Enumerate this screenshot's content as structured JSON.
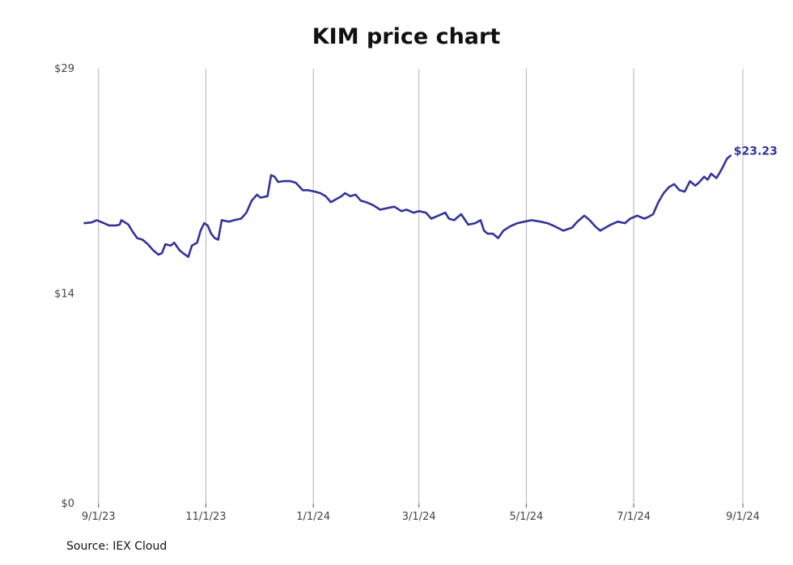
{
  "chart_data": {
    "type": "line",
    "title": "KIM price chart",
    "xlabel": "",
    "ylabel": "",
    "ylim": [
      0,
      29
    ],
    "y_ticks": [
      {
        "value": 0,
        "label": "$0"
      },
      {
        "value": 14,
        "label": "$14"
      },
      {
        "value": 29,
        "label": "$29"
      }
    ],
    "x_range": [
      "2023-08-22",
      "2024-09-18"
    ],
    "x_ticks": [
      {
        "date": "2023-09-01",
        "label": "9/1/23"
      },
      {
        "date": "2023-11-01",
        "label": "11/1/23"
      },
      {
        "date": "2024-01-01",
        "label": "1/1/24"
      },
      {
        "date": "2024-03-01",
        "label": "3/1/24"
      },
      {
        "date": "2024-05-01",
        "label": "5/1/24"
      },
      {
        "date": "2024-07-01",
        "label": "7/1/24"
      },
      {
        "date": "2024-09-01",
        "label": "9/1/24"
      }
    ],
    "grid": "vertical",
    "legend": "none",
    "color": "#33339a",
    "last_label": "$23.23",
    "series": [
      {
        "points": [
          [
            "2023-08-24",
            18.7
          ],
          [
            "2023-08-28",
            18.75
          ],
          [
            "2023-08-31",
            18.9
          ],
          [
            "2023-09-04",
            18.7
          ],
          [
            "2023-09-07",
            18.55
          ],
          [
            "2023-09-11",
            18.55
          ],
          [
            "2023-09-13",
            18.6
          ],
          [
            "2023-09-14",
            18.9
          ],
          [
            "2023-09-18",
            18.6
          ],
          [
            "2023-09-20",
            18.2
          ],
          [
            "2023-09-23",
            17.7
          ],
          [
            "2023-09-26",
            17.6
          ],
          [
            "2023-09-29",
            17.3
          ],
          [
            "2023-10-02",
            16.9
          ],
          [
            "2023-10-05",
            16.6
          ],
          [
            "2023-10-07",
            16.7
          ],
          [
            "2023-10-09",
            17.3
          ],
          [
            "2023-10-12",
            17.2
          ],
          [
            "2023-10-14",
            17.4
          ],
          [
            "2023-10-17",
            16.9
          ],
          [
            "2023-10-19",
            16.7
          ],
          [
            "2023-10-22",
            16.45
          ],
          [
            "2023-10-24",
            17.2
          ],
          [
            "2023-10-27",
            17.4
          ],
          [
            "2023-10-29",
            18.2
          ],
          [
            "2023-10-31",
            18.7
          ],
          [
            "2023-11-02",
            18.55
          ],
          [
            "2023-11-04",
            18.0
          ],
          [
            "2023-11-06",
            17.7
          ],
          [
            "2023-11-08",
            17.6
          ],
          [
            "2023-11-10",
            18.9
          ],
          [
            "2023-11-14",
            18.8
          ],
          [
            "2023-11-17",
            18.9
          ],
          [
            "2023-11-21",
            19.0
          ],
          [
            "2023-11-24",
            19.4
          ],
          [
            "2023-11-27",
            20.2
          ],
          [
            "2023-11-30",
            20.6
          ],
          [
            "2023-12-02",
            20.4
          ],
          [
            "2023-12-06",
            20.5
          ],
          [
            "2023-12-08",
            21.9
          ],
          [
            "2023-12-10",
            21.8
          ],
          [
            "2023-12-12",
            21.45
          ],
          [
            "2023-12-15",
            21.5
          ],
          [
            "2023-12-19",
            21.5
          ],
          [
            "2023-12-22",
            21.4
          ],
          [
            "2023-12-26",
            20.9
          ],
          [
            "2023-12-29",
            20.9
          ],
          [
            "2024-01-02",
            20.8
          ],
          [
            "2024-01-05",
            20.7
          ],
          [
            "2024-01-08",
            20.5
          ],
          [
            "2024-01-11",
            20.1
          ],
          [
            "2024-01-14",
            20.3
          ],
          [
            "2024-01-17",
            20.5
          ],
          [
            "2024-01-19",
            20.7
          ],
          [
            "2024-01-22",
            20.5
          ],
          [
            "2024-01-25",
            20.6
          ],
          [
            "2024-01-28",
            20.2
          ],
          [
            "2024-01-31",
            20.1
          ],
          [
            "2024-02-04",
            19.9
          ],
          [
            "2024-02-08",
            19.6
          ],
          [
            "2024-02-12",
            19.7
          ],
          [
            "2024-02-16",
            19.8
          ],
          [
            "2024-02-20",
            19.5
          ],
          [
            "2024-02-23",
            19.6
          ],
          [
            "2024-02-27",
            19.4
          ],
          [
            "2024-03-01",
            19.5
          ],
          [
            "2024-03-05",
            19.4
          ],
          [
            "2024-03-08",
            19.0
          ],
          [
            "2024-03-12",
            19.2
          ],
          [
            "2024-03-16",
            19.4
          ],
          [
            "2024-03-18",
            19.0
          ],
          [
            "2024-03-21",
            18.9
          ],
          [
            "2024-03-25",
            19.3
          ],
          [
            "2024-03-29",
            18.6
          ],
          [
            "2024-04-02",
            18.7
          ],
          [
            "2024-04-05",
            18.9
          ],
          [
            "2024-04-07",
            18.2
          ],
          [
            "2024-04-09",
            18.0
          ],
          [
            "2024-04-12",
            18.0
          ],
          [
            "2024-04-15",
            17.7
          ],
          [
            "2024-04-18",
            18.2
          ],
          [
            "2024-04-22",
            18.5
          ],
          [
            "2024-04-26",
            18.7
          ],
          [
            "2024-04-30",
            18.8
          ],
          [
            "2024-05-04",
            18.9
          ],
          [
            "2024-05-09",
            18.8
          ],
          [
            "2024-05-13",
            18.7
          ],
          [
            "2024-05-17",
            18.5
          ],
          [
            "2024-05-22",
            18.2
          ],
          [
            "2024-05-27",
            18.4
          ],
          [
            "2024-05-30",
            18.8
          ],
          [
            "2024-06-03",
            19.2
          ],
          [
            "2024-06-06",
            18.9
          ],
          [
            "2024-06-09",
            18.5
          ],
          [
            "2024-06-12",
            18.2
          ],
          [
            "2024-06-15",
            18.4
          ],
          [
            "2024-06-18",
            18.6
          ],
          [
            "2024-06-22",
            18.8
          ],
          [
            "2024-06-26",
            18.7
          ],
          [
            "2024-06-29",
            19.0
          ],
          [
            "2024-07-03",
            19.2
          ],
          [
            "2024-07-07",
            19.0
          ],
          [
            "2024-07-09",
            19.1
          ],
          [
            "2024-07-12",
            19.3
          ],
          [
            "2024-07-15",
            20.1
          ],
          [
            "2024-07-18",
            20.7
          ],
          [
            "2024-07-21",
            21.1
          ],
          [
            "2024-07-24",
            21.3
          ],
          [
            "2024-07-27",
            20.9
          ],
          [
            "2024-07-30",
            20.8
          ],
          [
            "2024-08-02",
            21.5
          ],
          [
            "2024-08-05",
            21.2
          ],
          [
            "2024-08-07",
            21.4
          ],
          [
            "2024-08-10",
            21.8
          ],
          [
            "2024-08-12",
            21.6
          ],
          [
            "2024-08-14",
            22.0
          ],
          [
            "2024-08-17",
            21.7
          ],
          [
            "2024-08-20",
            22.3
          ],
          [
            "2024-08-23",
            23.0
          ],
          [
            "2024-08-25",
            23.2
          ]
        ]
      }
    ]
  },
  "source": "Source: IEX Cloud"
}
